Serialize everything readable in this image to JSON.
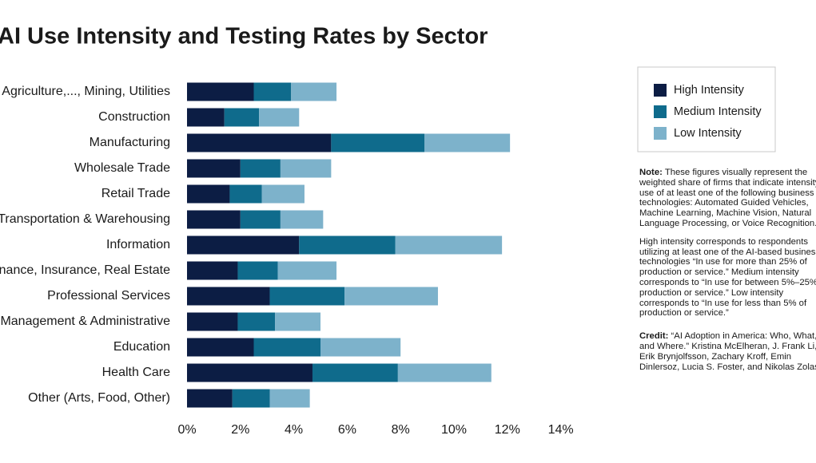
{
  "chart_data": {
    "type": "stacked_bar_horizontal",
    "title": "AI Use Intensity and Testing Rates by Sector",
    "categories": [
      "Agriculture,..., Mining, Utilities",
      "Construction",
      "Manufacturing",
      "Wholesale Trade",
      "Retail Trade",
      "Transportation & Warehousing",
      "Information",
      "Finance, Insurance, Real Estate",
      "Professional Services",
      "Management & Administrative",
      "Education",
      "Health Care",
      "Other (Arts, Food, Other)"
    ],
    "series": [
      {
        "name": "High Intensity",
        "color": "#0c1d44",
        "values": [
          2.5,
          1.4,
          5.4,
          2.0,
          1.6,
          2.0,
          4.2,
          1.9,
          3.1,
          1.9,
          2.5,
          4.7,
          1.7
        ]
      },
      {
        "name": "Medium Intensity",
        "color": "#0f6b8c",
        "values": [
          1.4,
          1.3,
          3.5,
          1.5,
          1.2,
          1.5,
          3.6,
          1.5,
          2.8,
          1.4,
          2.5,
          3.2,
          1.4
        ]
      },
      {
        "name": "Low Intensity",
        "color": "#7db2cb",
        "values": [
          1.7,
          1.5,
          3.2,
          1.9,
          1.6,
          1.6,
          4.0,
          2.2,
          3.5,
          1.7,
          3.0,
          3.5,
          1.5
        ]
      }
    ],
    "xlim": [
      0,
      14
    ],
    "xticks": [
      {
        "value": 0,
        "label": "0%"
      },
      {
        "value": 2,
        "label": "2%"
      },
      {
        "value": 4,
        "label": "4%"
      },
      {
        "value": 6,
        "label": "6%"
      },
      {
        "value": 8,
        "label": "8%"
      },
      {
        "value": 10,
        "label": "10%"
      },
      {
        "value": 12,
        "label": "12%"
      },
      {
        "value": 14,
        "label": "14%"
      }
    ],
    "legend": "top-right",
    "note_label": "Note:",
    "note": "These figures visually represent the weighted share of firms that indicate intensity of use of at least one of the following business technologies: Automated Guided Vehicles, Machine Learning, Machine Vision, Natural Language Processing, or Voice Recognition.",
    "note2": "High intensity corresponds to respondents utilizing at least one of the AI-based business technologies “In use for more than 25% of production or service.” Medium intensity corresponds to “In use for between 5%–25% of production or service.” Low intensity corresponds to “In use for less than 5% of production or service.”",
    "credit_label": "Credit:",
    "credit": "“AI Adoption in America: Who, What, and Where.” Kristina McElheran, J. Frank Li, Erik Brynjolfsson, Zachary Kroff, Emin Dinlersoz, Lucia S. Foster, and Nikolas Zolas"
  }
}
